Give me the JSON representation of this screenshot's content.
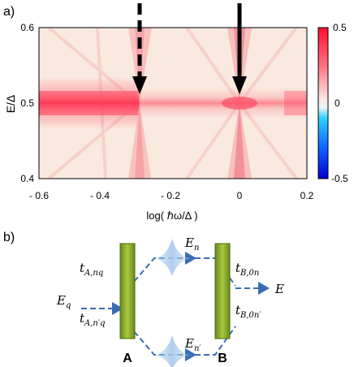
{
  "panel_a": {
    "label": "a)",
    "ylabel": "E/Δ",
    "xlabel": "log( ℏω/Δ )",
    "xticks": [
      "- 0.6",
      "- 0.4",
      "- 0.2",
      "0",
      "0.2"
    ],
    "yticks": [
      "0.4",
      "0.5",
      "0.6"
    ],
    "colorbar_ticks": [
      "0.5",
      "0",
      "-0.5"
    ],
    "arrows": [
      {
        "style": "dashed",
        "x": -0.3
      },
      {
        "style": "solid",
        "x": 0.0
      }
    ]
  },
  "panel_b": {
    "label": "b)",
    "barrier_left": "A",
    "barrier_right": "B",
    "E_q": "E",
    "E_q_sub": "q",
    "E_out": "E",
    "E_n": "E",
    "E_n_sub": "n",
    "E_np": "E",
    "E_np_sub": "n′",
    "t_A_nq": "t",
    "t_A_nq_sub": "A,nq",
    "t_A_npq": "t",
    "t_A_npq_sub": "A,n′q",
    "t_B_0n": "t",
    "t_B_0n_sub": "B,0n",
    "t_B_0np": "t",
    "t_B_0np_sub": "B,0n′"
  },
  "chart_data": {
    "type": "heatmap",
    "xlabel": "log( ℏω/Δ )",
    "ylabel": "E/Δ",
    "xlim": [
      -0.65,
      0.2
    ],
    "ylim": [
      0.4,
      0.6
    ],
    "color_range": [
      -0.5,
      0.5
    ],
    "xticks": [
      -0.6,
      -0.4,
      -0.2,
      0,
      0.2
    ],
    "yticks": [
      0.4,
      0.5,
      0.6
    ],
    "features": {
      "horizontal_band_center_E": 0.5,
      "crossing_points_logx": [
        -0.3,
        0.0
      ],
      "arrows_at_logx": [
        -0.3,
        0.0
      ]
    }
  }
}
